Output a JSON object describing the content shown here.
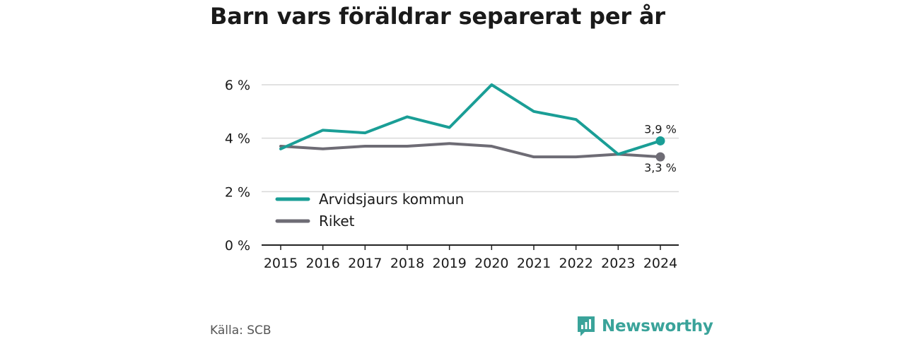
{
  "title": "Barn vars föräldrar separerat per år",
  "source": "Källa: SCB",
  "brand": "Newsworthy",
  "colors": {
    "series1": "#1a9e96",
    "series2": "#6e6c75",
    "grid": "#d9d9d9",
    "axis": "#222222",
    "brand": "#3aa39a"
  },
  "chart_data": {
    "type": "line",
    "title": "Barn vars föräldrar separerat per år",
    "x": [
      "2015",
      "2016",
      "2017",
      "2018",
      "2019",
      "2020",
      "2021",
      "2022",
      "2023",
      "2024"
    ],
    "ylim": [
      0,
      6
    ],
    "yticks": [
      0,
      2,
      4,
      6
    ],
    "ytick_labels": [
      "0 %",
      "2 %",
      "4 %",
      "6 %"
    ],
    "grid": true,
    "legend": "bottom-left",
    "series": [
      {
        "name": "Arvidsjaurs kommun",
        "values": [
          3.6,
          4.3,
          4.2,
          4.8,
          4.4,
          6.0,
          5.0,
          4.7,
          3.4,
          3.9
        ],
        "end_label": "3,9 %"
      },
      {
        "name": "Riket",
        "values": [
          3.7,
          3.6,
          3.7,
          3.7,
          3.8,
          3.7,
          3.3,
          3.3,
          3.4,
          3.3
        ],
        "end_label": "3,3 %"
      }
    ]
  }
}
